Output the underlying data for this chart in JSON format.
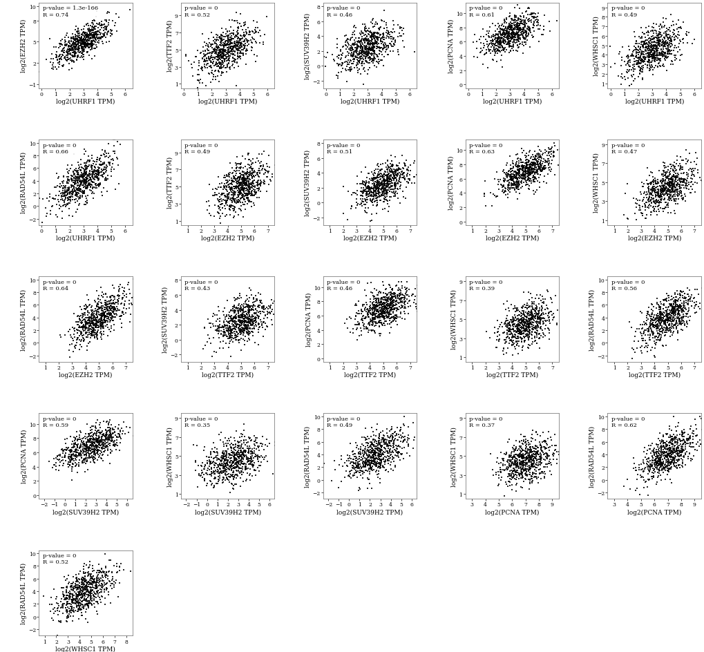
{
  "plots": [
    {
      "x_label": "log2(UHRF1 TPM)",
      "y_label": "log2(EZH2 TPM)",
      "p_value": "p-value = 1.3e-166",
      "R": "R = 0.74",
      "x_mean": 3.0,
      "x_std": 1.0,
      "y_mean": 5.0,
      "y_std": 1.5,
      "x_ticks": [
        0,
        1,
        2,
        3,
        4,
        5,
        6
      ],
      "y_ticks": [
        -1,
        2,
        5,
        8,
        10
      ],
      "x_lim": [
        -0.2,
        6.5
      ],
      "y_lim": [
        -1.5,
        10.5
      ]
    },
    {
      "x_label": "log2(UHRF1 TPM)",
      "y_label": "log2(TTF2 TPM)",
      "p_value": "p-value = 0",
      "R": "R = 0.52",
      "x_mean": 3.0,
      "x_std": 1.0,
      "y_mean": 5.0,
      "y_std": 1.5,
      "x_ticks": [
        0,
        1,
        2,
        3,
        4,
        5,
        6
      ],
      "y_ticks": [
        1,
        3,
        5,
        7,
        9
      ],
      "x_lim": [
        -0.2,
        6.5
      ],
      "y_lim": [
        0.5,
        10.5
      ]
    },
    {
      "x_label": "log2(UHRF1 TPM)",
      "y_label": "log2(SUV39H2 TPM)",
      "p_value": "p-value = 0",
      "R": "R = 0.46",
      "x_mean": 3.0,
      "x_std": 1.0,
      "y_mean": 2.5,
      "y_std": 1.5,
      "x_ticks": [
        0,
        1,
        2,
        3,
        4,
        5,
        6
      ],
      "y_ticks": [
        -2,
        0,
        2,
        4,
        6,
        8
      ],
      "x_lim": [
        -0.2,
        6.5
      ],
      "y_lim": [
        -3.0,
        8.5
      ]
    },
    {
      "x_label": "log2(UHRF1 TPM)",
      "y_label": "log2(PCNA TPM)",
      "p_value": "p-value = 0",
      "R": "R = 0.61",
      "x_mean": 3.0,
      "x_std": 1.0,
      "y_mean": 7.0,
      "y_std": 1.5,
      "x_ticks": [
        0,
        1,
        2,
        3,
        4,
        5,
        6
      ],
      "y_ticks": [
        0,
        2,
        4,
        6,
        8,
        10
      ],
      "x_lim": [
        -0.2,
        6.5
      ],
      "y_lim": [
        -0.5,
        11.5
      ]
    },
    {
      "x_label": "log2(UHRF1 TPM)",
      "y_label": "log2(WHSC1 TPM)",
      "p_value": "p-value = 0",
      "R": "R = 0.49",
      "x_mean": 3.0,
      "x_std": 1.0,
      "y_mean": 4.5,
      "y_std": 1.2,
      "x_ticks": [
        0,
        1,
        2,
        3,
        4,
        5,
        6
      ],
      "y_ticks": [
        1,
        2,
        3,
        4,
        5,
        6,
        7,
        8,
        9
      ],
      "x_lim": [
        -0.2,
        6.5
      ],
      "y_lim": [
        0.5,
        9.5
      ]
    },
    {
      "x_label": "log2(UHRF1 TPM)",
      "y_label": "log2(RAD54L TPM)",
      "p_value": "p-value = 0",
      "R": "R = 0.66",
      "x_mean": 3.0,
      "x_std": 1.0,
      "y_mean": 4.0,
      "y_std": 2.0,
      "x_ticks": [
        0,
        1,
        2,
        3,
        4,
        5,
        6
      ],
      "y_ticks": [
        -2,
        0,
        2,
        4,
        6,
        8,
        10
      ],
      "x_lim": [
        -0.2,
        6.5
      ],
      "y_lim": [
        -3.0,
        10.5
      ]
    },
    {
      "x_label": "log2(EZH2 TPM)",
      "y_label": "log2(TTF2 TPM)",
      "p_value": "p-value = 0",
      "R": "R = 0.49",
      "x_mean": 5.0,
      "x_std": 1.0,
      "y_mean": 5.0,
      "y_std": 1.5,
      "x_ticks": [
        1,
        2,
        3,
        4,
        5,
        6,
        7
      ],
      "y_ticks": [
        1,
        3,
        5,
        7,
        9
      ],
      "x_lim": [
        0.5,
        7.5
      ],
      "y_lim": [
        0.5,
        10.5
      ]
    },
    {
      "x_label": "log2(EZH2 TPM)",
      "y_label": "log2(SUV39H2 TPM)",
      "p_value": "p-value = 0",
      "R": "R = 0.51",
      "x_mean": 5.0,
      "x_std": 1.0,
      "y_mean": 2.5,
      "y_std": 1.5,
      "x_ticks": [
        1,
        2,
        3,
        4,
        5,
        6,
        7
      ],
      "y_ticks": [
        -2,
        0,
        2,
        4,
        6,
        8
      ],
      "x_lim": [
        0.5,
        7.5
      ],
      "y_lim": [
        -3.0,
        8.5
      ]
    },
    {
      "x_label": "log2(EZH2 TPM)",
      "y_label": "log2(PCNA TPM)",
      "p_value": "p-value = 0",
      "R": "R = 0.63",
      "x_mean": 5.0,
      "x_std": 1.0,
      "y_mean": 7.0,
      "y_std": 1.5,
      "x_ticks": [
        1,
        2,
        3,
        4,
        5,
        6,
        7
      ],
      "y_ticks": [
        0,
        2,
        4,
        6,
        8,
        10
      ],
      "x_lim": [
        0.5,
        7.5
      ],
      "y_lim": [
        -0.5,
        11.5
      ]
    },
    {
      "x_label": "log2(EZH2 TPM)",
      "y_label": "log2(WHSC1 TPM)",
      "p_value": "p-value = 0",
      "R": "R = 0.47",
      "x_mean": 5.0,
      "x_std": 1.0,
      "y_mean": 4.5,
      "y_std": 1.2,
      "x_ticks": [
        1,
        2,
        3,
        4,
        5,
        6,
        7
      ],
      "y_ticks": [
        1,
        3,
        5,
        7,
        9
      ],
      "x_lim": [
        0.5,
        7.5
      ],
      "y_lim": [
        0.5,
        9.5
      ]
    },
    {
      "x_label": "log2(EZH2 TPM)",
      "y_label": "log2(RAD54L TPM)",
      "p_value": "p-value = 0",
      "R": "R = 0.64",
      "x_mean": 5.0,
      "x_std": 1.0,
      "y_mean": 4.0,
      "y_std": 2.0,
      "x_ticks": [
        1,
        2,
        3,
        4,
        5,
        6,
        7
      ],
      "y_ticks": [
        -2,
        0,
        2,
        4,
        6,
        8,
        10
      ],
      "x_lim": [
        0.5,
        7.5
      ],
      "y_lim": [
        -3.0,
        10.5
      ]
    },
    {
      "x_label": "log2(TTF2 TPM)",
      "y_label": "log2(SUV39H2 TPM)",
      "p_value": "p-value = 0",
      "R": "R = 0.43",
      "x_mean": 5.0,
      "x_std": 1.0,
      "y_mean": 2.5,
      "y_std": 1.5,
      "x_ticks": [
        1,
        2,
        3,
        4,
        5,
        6,
        7
      ],
      "y_ticks": [
        -2,
        0,
        2,
        4,
        6,
        8
      ],
      "x_lim": [
        0.5,
        7.5
      ],
      "y_lim": [
        -3.0,
        8.5
      ]
    },
    {
      "x_label": "log2(TTF2 TPM)",
      "y_label": "log2(PCNA TPM)",
      "p_value": "p-value = 0",
      "R": "R = 0.46",
      "x_mean": 5.0,
      "x_std": 1.0,
      "y_mean": 7.0,
      "y_std": 1.5,
      "x_ticks": [
        1,
        2,
        3,
        4,
        5,
        6,
        7
      ],
      "y_ticks": [
        0,
        2,
        4,
        6,
        8,
        10
      ],
      "x_lim": [
        0.5,
        7.5
      ],
      "y_lim": [
        -0.5,
        11.5
      ]
    },
    {
      "x_label": "log2(TTF2 TPM)",
      "y_label": "log2(WHSC1 TPM)",
      "p_value": "p-value = 0",
      "R": "R = 0.39",
      "x_mean": 5.0,
      "x_std": 1.0,
      "y_mean": 4.5,
      "y_std": 1.2,
      "x_ticks": [
        1,
        2,
        3,
        4,
        5,
        6,
        7
      ],
      "y_ticks": [
        1,
        3,
        5,
        7,
        9
      ],
      "x_lim": [
        0.5,
        7.5
      ],
      "y_lim": [
        0.5,
        9.5
      ]
    },
    {
      "x_label": "log2(TTF2 TPM)",
      "y_label": "log2(RAD54L TPM)",
      "p_value": "p-value = 0",
      "R": "R = 0.56",
      "x_mean": 5.0,
      "x_std": 1.0,
      "y_mean": 4.0,
      "y_std": 2.0,
      "x_ticks": [
        1,
        2,
        3,
        4,
        5,
        6,
        7
      ],
      "y_ticks": [
        -2,
        0,
        2,
        4,
        6,
        8,
        10
      ],
      "x_lim": [
        0.5,
        7.5
      ],
      "y_lim": [
        -3.0,
        10.5
      ]
    },
    {
      "x_label": "log2(SUV39H2 TPM)",
      "y_label": "log2(PCNA TPM)",
      "p_value": "p-value = 0",
      "R": "R = 0.59",
      "x_mean": 2.5,
      "x_std": 1.5,
      "y_mean": 7.0,
      "y_std": 1.5,
      "x_ticks": [
        -2,
        -1,
        0,
        1,
        2,
        3,
        4,
        5,
        6
      ],
      "y_ticks": [
        0,
        2,
        4,
        6,
        8,
        10
      ],
      "x_lim": [
        -2.5,
        6.5
      ],
      "y_lim": [
        -0.5,
        11.5
      ]
    },
    {
      "x_label": "log2(SUV39H2 TPM)",
      "y_label": "log2(WHSC1 TPM)",
      "p_value": "p-value = 0",
      "R": "R = 0.35",
      "x_mean": 2.5,
      "x_std": 1.5,
      "y_mean": 4.5,
      "y_std": 1.2,
      "x_ticks": [
        -2,
        -1,
        0,
        1,
        2,
        3,
        4,
        5,
        6
      ],
      "y_ticks": [
        1,
        3,
        5,
        7,
        9
      ],
      "x_lim": [
        -2.5,
        6.5
      ],
      "y_lim": [
        0.5,
        9.5
      ]
    },
    {
      "x_label": "log2(SUV39H2 TPM)",
      "y_label": "log2(RAD54L TPM)",
      "p_value": "p-value = 0",
      "R": "R = 0.49",
      "x_mean": 2.5,
      "x_std": 1.5,
      "y_mean": 4.0,
      "y_std": 2.0,
      "x_ticks": [
        -2,
        -1,
        0,
        1,
        2,
        3,
        4,
        5,
        6
      ],
      "y_ticks": [
        -2,
        0,
        2,
        4,
        6,
        8,
        10
      ],
      "x_lim": [
        -2.5,
        6.5
      ],
      "y_lim": [
        -3.0,
        10.5
      ]
    },
    {
      "x_label": "log2(PCNA TPM)",
      "y_label": "log2(WHSC1 TPM)",
      "p_value": "p-value = 0",
      "R": "R = 0.37",
      "x_mean": 7.0,
      "x_std": 1.0,
      "y_mean": 4.5,
      "y_std": 1.2,
      "x_ticks": [
        3,
        4,
        5,
        6,
        7,
        8,
        9
      ],
      "y_ticks": [
        1,
        3,
        5,
        7,
        9
      ],
      "x_lim": [
        2.5,
        9.5
      ],
      "y_lim": [
        0.5,
        9.5
      ]
    },
    {
      "x_label": "log2(PCNA TPM)",
      "y_label": "log2(RAD54L TPM)",
      "p_value": "p-value = 0",
      "R": "R = 0.62",
      "x_mean": 7.0,
      "x_std": 1.0,
      "y_mean": 4.0,
      "y_std": 2.0,
      "x_ticks": [
        3,
        4,
        5,
        6,
        7,
        8,
        9
      ],
      "y_ticks": [
        -2,
        0,
        2,
        4,
        6,
        8,
        10
      ],
      "x_lim": [
        2.5,
        9.5
      ],
      "y_lim": [
        -3.0,
        10.5
      ]
    },
    {
      "x_label": "log2(WHSC1 TPM)",
      "y_label": "log2(RAD54L TPM)",
      "p_value": "p-value = 0",
      "R": "R = 0.52",
      "x_mean": 4.5,
      "x_std": 1.2,
      "y_mean": 4.0,
      "y_std": 2.0,
      "x_ticks": [
        1,
        2,
        3,
        4,
        5,
        6,
        7,
        8
      ],
      "y_ticks": [
        -2,
        0,
        2,
        4,
        6,
        8,
        10
      ],
      "x_lim": [
        0.5,
        8.5
      ],
      "y_lim": [
        -3.0,
        10.5
      ]
    }
  ],
  "n_points": 700,
  "dot_size": 3,
  "dot_color": "black",
  "background_color": "white",
  "label_fontsize": 6.5,
  "tick_fontsize": 5.5,
  "annot_fontsize": 6.0
}
